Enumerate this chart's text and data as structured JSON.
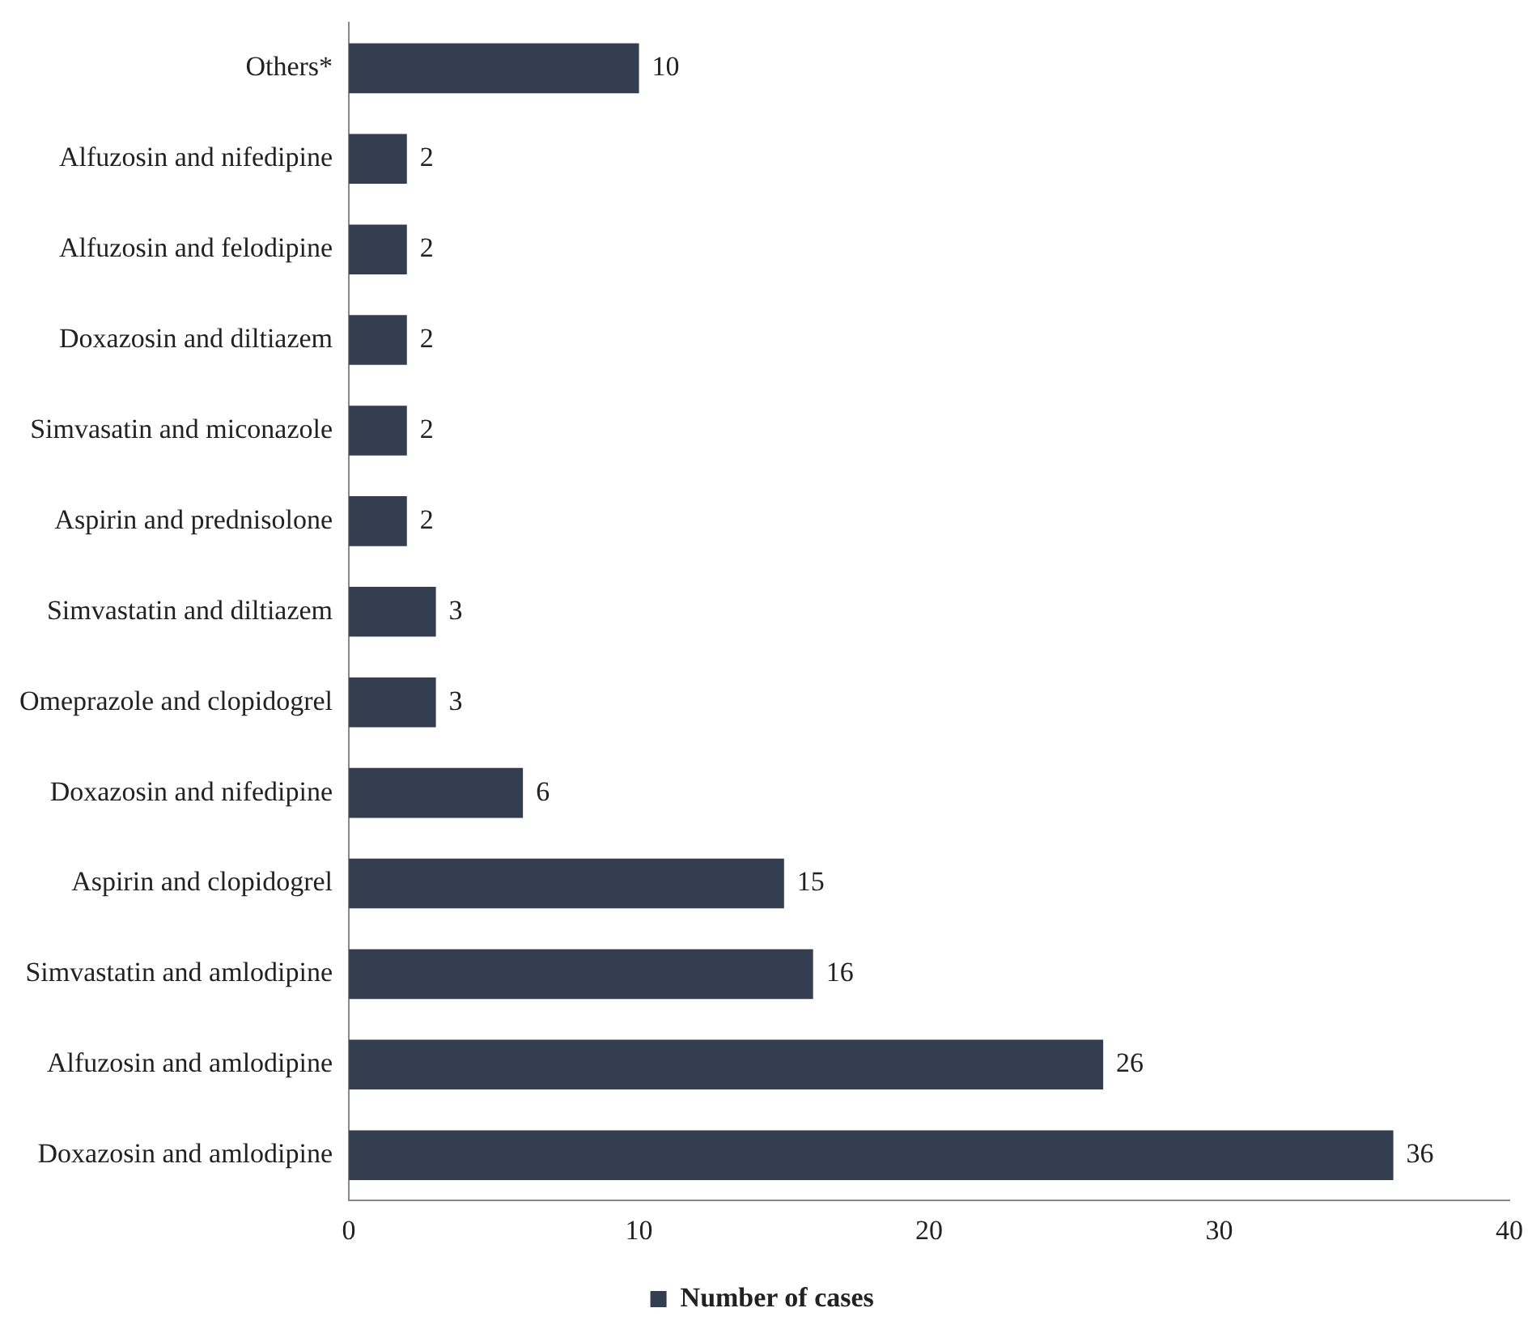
{
  "chart_data": {
    "type": "bar",
    "orientation": "horizontal",
    "categories": [
      "Others*",
      "Alfuzosin and nifedipine",
      "Alfuzosin and felodipine",
      "Doxazosin and diltiazem",
      "Simvasatin and miconazole",
      "Aspirin and prednisolone",
      "Simvastatin and diltiazem",
      "Omeprazole and clopidogrel",
      "Doxazosin and nifedipine",
      "Aspirin and clopidogrel",
      "Simvastatin and amlodipine",
      "Alfuzosin and amlodipine",
      "Doxazosin and amlodipine"
    ],
    "series": [
      {
        "name": "Number of cases",
        "color": "#333f50",
        "values": [
          10,
          2,
          2,
          2,
          2,
          2,
          3,
          3,
          6,
          15,
          16,
          26,
          36
        ]
      }
    ],
    "xlim": [
      0,
      40
    ],
    "xticks": [
      0,
      10,
      20,
      30,
      40
    ],
    "grid": false,
    "legend": "bottom",
    "data_labels": true
  }
}
